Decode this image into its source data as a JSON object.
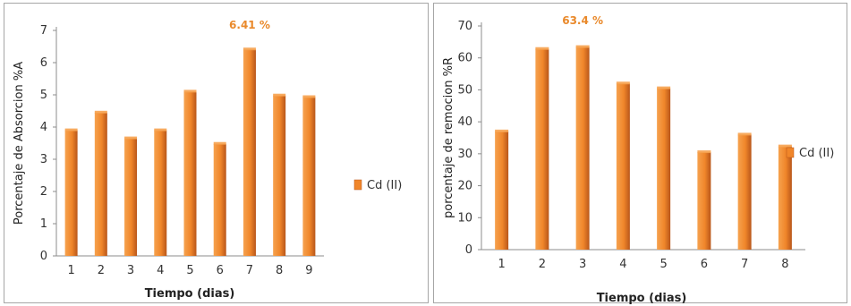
{
  "colors": {
    "bar_front": "#f0862a",
    "bar_light": "#f6a24f",
    "bar_dark": "#b8561a",
    "axis": "#8c8c8c",
    "annotation": "#e9892b"
  },
  "chart_data": [
    {
      "type": "bar",
      "categories": [
        "1",
        "2",
        "3",
        "4",
        "5",
        "6",
        "7",
        "8",
        "9"
      ],
      "series": [
        {
          "name": "Cd (II)",
          "values": [
            3.9,
            4.45,
            3.65,
            3.9,
            5.1,
            3.48,
            6.41,
            4.98,
            4.93
          ]
        }
      ],
      "title": "",
      "xlabel": "Tiempo (dias)",
      "ylabel": "Porcentaje de Absorcion %A",
      "ylim": [
        0,
        7
      ],
      "yticks": [
        "0",
        "1",
        "2",
        "3",
        "4",
        "5",
        "6",
        "7"
      ],
      "annotation": {
        "text": "6.41 %",
        "category_index": 6
      },
      "legend": "right"
    },
    {
      "type": "bar",
      "categories": [
        "1",
        "2",
        "3",
        "4",
        "5",
        "6",
        "7",
        "8"
      ],
      "series": [
        {
          "name": "Cd (II)",
          "values": [
            37,
            62.8,
            63.4,
            52,
            50.5,
            30.5,
            36,
            32.3
          ]
        }
      ],
      "title": "",
      "xlabel": "Tiempo (dias)",
      "ylabel": "porcentaje de remocion %R",
      "ylim": [
        0,
        70
      ],
      "yticks": [
        "0",
        "10",
        "20",
        "30",
        "40",
        "50",
        "60",
        "70"
      ],
      "annotation": {
        "text": "63.4 %",
        "category_index": 2
      },
      "legend": "right"
    }
  ]
}
